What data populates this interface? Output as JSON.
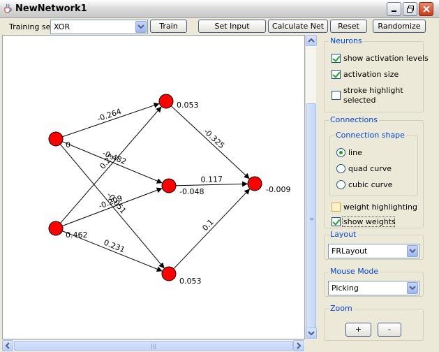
{
  "window": {
    "title": "NewNetwork1",
    "app_icon": "java-cup-icon"
  },
  "toolbar": {
    "training_set_label": "Training set:",
    "training_set_value": "XOR",
    "buttons": [
      "Train",
      "Set Input",
      "Calculate Net",
      "Reset",
      "Randomize"
    ]
  },
  "network": {
    "nodes": [
      {
        "id": "in1",
        "value": "0"
      },
      {
        "id": "in2",
        "value": "0.462"
      },
      {
        "id": "h1",
        "value": "0.053"
      },
      {
        "id": "h2",
        "value": "-0.048"
      },
      {
        "id": "h3",
        "value": "0.053"
      },
      {
        "id": "out",
        "value": "-0.009"
      }
    ],
    "edges": [
      {
        "from": "in1",
        "to": "h1",
        "weight": "-0.264"
      },
      {
        "from": "in1",
        "to": "h2",
        "weight": "-0.482"
      },
      {
        "from": "in1",
        "to": "h3",
        "weight": "-0.051"
      },
      {
        "from": "in2",
        "to": "h1",
        "weight": "0.23"
      },
      {
        "from": "in2",
        "to": "h2",
        "weight": "-0.209"
      },
      {
        "from": "in2",
        "to": "h3",
        "weight": "0.231"
      },
      {
        "from": "h1",
        "to": "out",
        "weight": "-0.325"
      },
      {
        "from": "h2",
        "to": "out",
        "weight": "0.117"
      },
      {
        "from": "h3",
        "to": "out",
        "weight": "0.1"
      }
    ],
    "node_color": "#FF0000"
  },
  "panel": {
    "neurons": {
      "title": "Neurons",
      "show_activation_levels": {
        "label": "show activation levels",
        "checked": true
      },
      "activation_size": {
        "label": "activation size",
        "checked": true
      },
      "stroke_highlight": {
        "label_line1": "stroke highlight",
        "label_line2": "selected",
        "checked": false
      }
    },
    "connections": {
      "title": "Connections",
      "shape_title": "Connection shape",
      "options": [
        "line",
        "quad curve",
        "cubic curve"
      ],
      "selected": "line",
      "weight_highlighting": {
        "label": "weight highlighting",
        "checked": false
      },
      "show_weights": {
        "label": "show weights",
        "checked": true
      }
    },
    "layout": {
      "title": "Layout",
      "value": "FRLayout"
    },
    "mouse_mode": {
      "title": "Mouse Mode",
      "value": "Picking"
    },
    "zoom": {
      "title": "Zoom",
      "plus": "+",
      "minus": "-"
    }
  },
  "colors": {
    "accent": "#0046D5",
    "window_bg": "#ECE9D8"
  }
}
